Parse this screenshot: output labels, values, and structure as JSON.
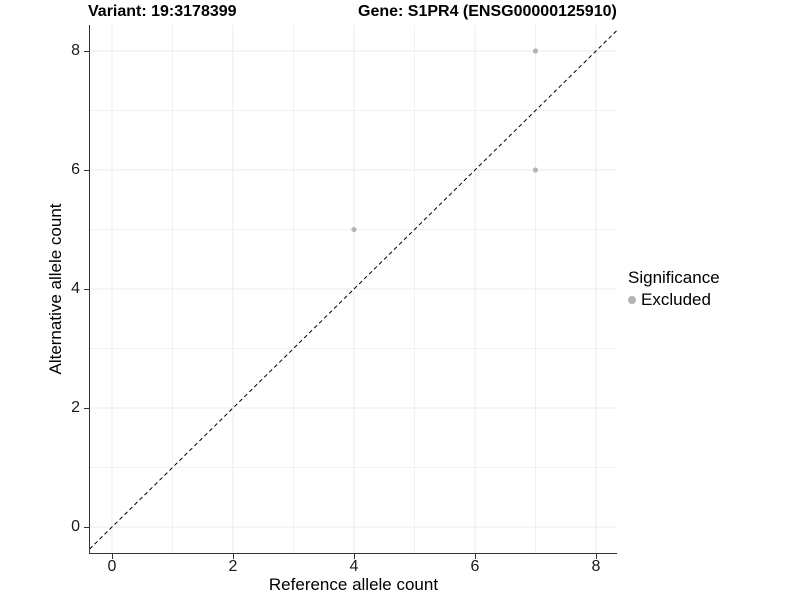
{
  "chart_data": {
    "type": "scatter",
    "titles": {
      "left": "Variant: 19:3178399",
      "right": "Gene: S1PR4 (ENSG00000125910)"
    },
    "xlabel": "Reference allele count",
    "ylabel": "Alternative allele count",
    "xlim": [
      -0.4,
      8.4
    ],
    "ylim": [
      -0.4,
      8.4
    ],
    "x_ticks": [
      "0",
      "2",
      "4",
      "6",
      "8"
    ],
    "y_ticks": [
      "0",
      "2",
      "4",
      "6",
      "8"
    ],
    "grid": {
      "major_lines": [
        0,
        2,
        4,
        6,
        8
      ],
      "minor_lines": [
        1,
        3,
        5,
        7
      ],
      "major_color": "#ebebeb",
      "minor_color": "#f1f1f1",
      "panel_background": "#ffffff"
    },
    "reference_line": {
      "type": "identity",
      "dash": "dashed",
      "color": "#000000"
    },
    "series": [
      {
        "name": "Excluded",
        "color": "#b5b5b5",
        "points": [
          [
            4,
            5
          ],
          [
            7,
            6
          ],
          [
            7,
            8
          ]
        ]
      }
    ],
    "legend": {
      "title": "Significance",
      "position": "right",
      "entries": [
        {
          "label": "Excluded",
          "color": "#b5b5b5"
        }
      ]
    },
    "axis_color": "#333333"
  }
}
